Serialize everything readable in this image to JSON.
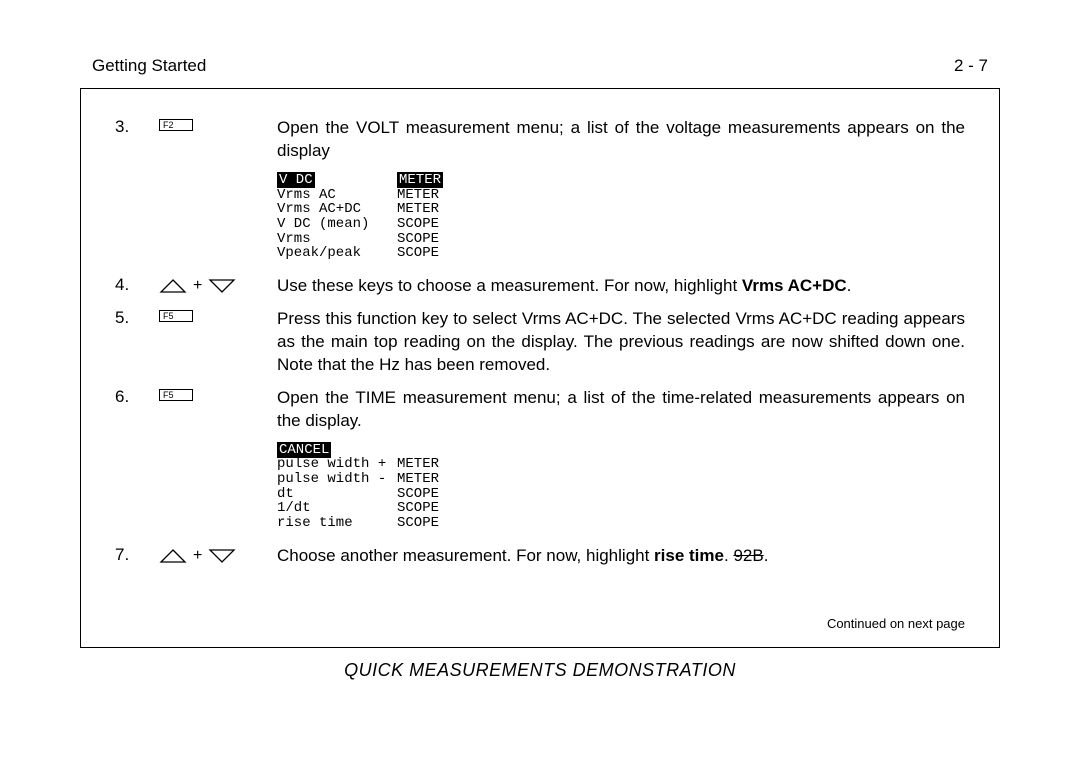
{
  "header": {
    "left": "Getting Started",
    "right": "2 - 7"
  },
  "steps": [
    {
      "num": "3.",
      "key_type": "fkey",
      "key_label": "F2",
      "text_parts": [
        {
          "t": "Open the VOLT measurement menu; a list of the voltage measurements appears on the display",
          "bold": false
        }
      ],
      "menu": {
        "rows": [
          {
            "c1": "V DC",
            "c1_inv": true,
            "c2": "METER",
            "c2_inv": true
          },
          {
            "c1": "Vrms AC",
            "c1_inv": false,
            "c2": "METER",
            "c2_inv": false
          },
          {
            "c1": "Vrms AC+DC",
            "c1_inv": false,
            "c2": "METER",
            "c2_inv": false
          },
          {
            "c1": "V DC (mean)",
            "c1_inv": false,
            "c2": "SCOPE",
            "c2_inv": false
          },
          {
            "c1": "Vrms",
            "c1_inv": false,
            "c2": "SCOPE",
            "c2_inv": false
          },
          {
            "c1": "Vpeak/peak",
            "c1_inv": false,
            "c2": "SCOPE",
            "c2_inv": false
          }
        ]
      }
    },
    {
      "num": "4.",
      "key_type": "arrows",
      "text_parts": [
        {
          "t": "Use these keys to choose a measurement. For now, highlight ",
          "bold": false
        },
        {
          "t": "Vrms AC+DC",
          "bold": true
        },
        {
          "t": ".",
          "bold": false
        }
      ]
    },
    {
      "num": "5.",
      "key_type": "fkey",
      "key_label": "F5",
      "text_parts": [
        {
          "t": "Press this function key to select Vrms AC+DC. The selected Vrms AC+DC reading appears as the main top reading on the display. The previous readings are now shifted down one. Note that the Hz has been removed.",
          "bold": false
        }
      ]
    },
    {
      "num": "6.",
      "key_type": "fkey",
      "key_label": "F5",
      "text_parts": [
        {
          "t": "Open the TIME measurement menu; a list of the time-related measurements appears on the display.",
          "bold": false
        }
      ],
      "menu": {
        "rows": [
          {
            "c1": "CANCEL",
            "c1_inv": true,
            "c2": "",
            "c2_inv": false
          },
          {
            "c1": "pulse width +",
            "c1_inv": false,
            "c2": "METER",
            "c2_inv": false
          },
          {
            "c1": "pulse width -",
            "c1_inv": false,
            "c2": "METER",
            "c2_inv": false
          },
          {
            "c1": "dt",
            "c1_inv": false,
            "c2": "SCOPE",
            "c2_inv": false
          },
          {
            "c1": "1/dt",
            "c1_inv": false,
            "c2": "SCOPE",
            "c2_inv": false
          },
          {
            "c1": "rise time",
            "c1_inv": false,
            "c2": "SCOPE",
            "c2_inv": false
          }
        ]
      }
    },
    {
      "num": "7.",
      "key_type": "arrows",
      "text_parts": [
        {
          "t": "Choose another measurement. For now, highlight ",
          "bold": false
        },
        {
          "t": "rise time",
          "bold": true
        },
        {
          "t": ". ",
          "bold": false
        },
        {
          "t": "92B",
          "bold": false,
          "strike": true
        },
        {
          "t": ".",
          "bold": false
        }
      ]
    }
  ],
  "continued": "Continued on next page",
  "footer": "QUICK MEASUREMENTS DEMONSTRATION",
  "arrow_plus": "+",
  "colors": {
    "text": "#000000",
    "bg": "#ffffff",
    "inv_bg": "#000000",
    "inv_fg": "#ffffff",
    "border": "#000000"
  }
}
